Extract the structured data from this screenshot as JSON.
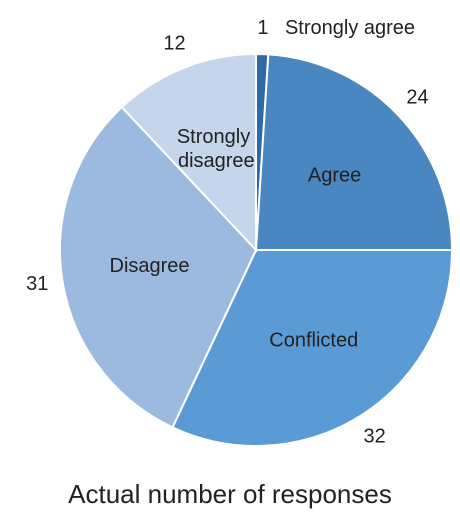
{
  "chart_data": {
    "type": "pie",
    "title": "Actual number of responses",
    "categories": [
      "Strongly agree",
      "Agree",
      "Conflicted",
      "Disagree",
      "Strongly disagree"
    ],
    "values": [
      1,
      24,
      32,
      31,
      12
    ],
    "colors": [
      "#2f6aa6",
      "#4a86c0",
      "#5b9bd5",
      "#9cbae0",
      "#c4d5ec"
    ]
  }
}
